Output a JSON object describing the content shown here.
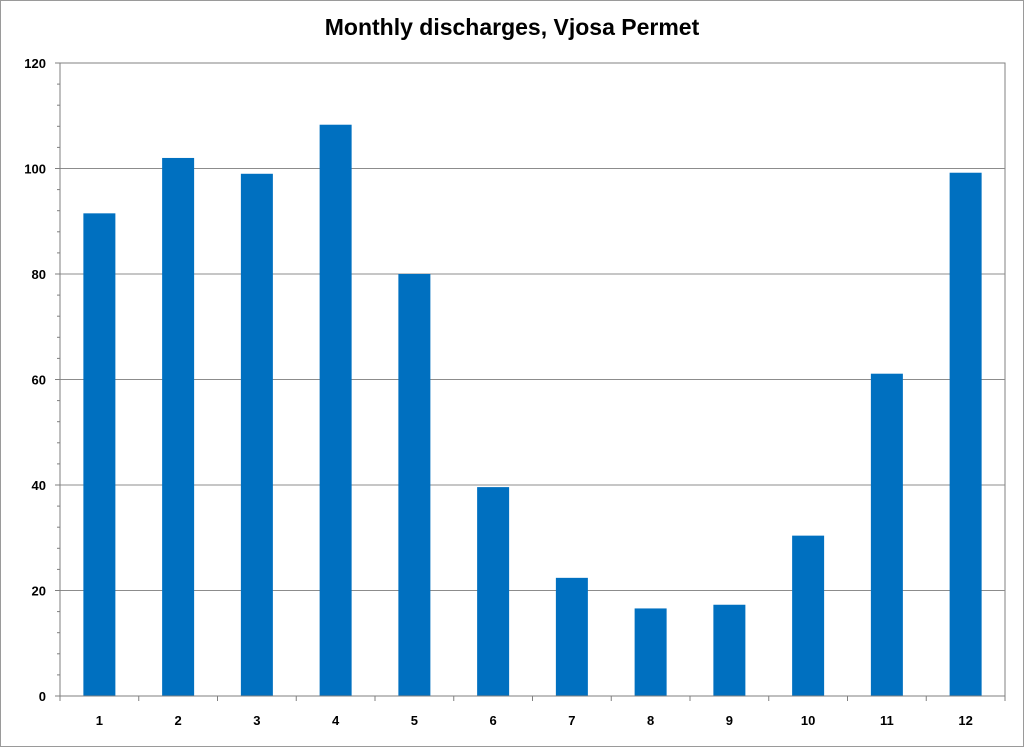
{
  "chart_data": {
    "type": "bar",
    "title": "Monthly discharges, Vjosa Permet",
    "xlabel": "",
    "ylabel": "",
    "categories": [
      "1",
      "2",
      "3",
      "4",
      "5",
      "6",
      "7",
      "8",
      "9",
      "10",
      "11",
      "12"
    ],
    "values": [
      91.5,
      102.0,
      99.0,
      108.3,
      80.0,
      39.6,
      22.4,
      16.6,
      17.3,
      30.4,
      61.1,
      99.2
    ],
    "ylim": [
      0,
      120
    ],
    "yticks": [
      "0",
      "20",
      "40",
      "60",
      "80",
      "100",
      "120"
    ],
    "grid": true,
    "legend": "none",
    "colors": {
      "bar": "#0070C0",
      "grid": "#8c8c8c",
      "axis": "#7f7f7f"
    }
  }
}
